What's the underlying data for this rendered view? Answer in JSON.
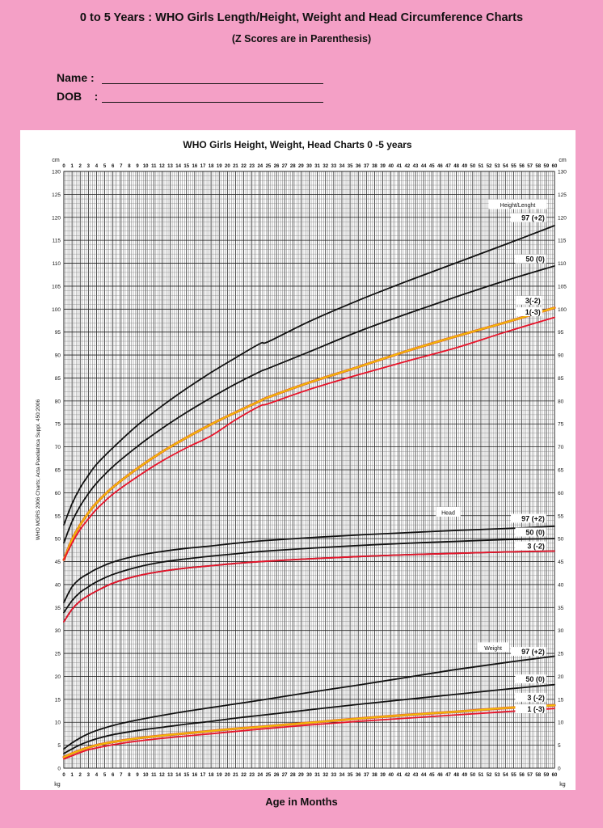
{
  "header": {
    "title": "0 to 5 Years : WHO Girls Length/Height, Weight and Head Circumference Charts",
    "subtitle": "(Z Scores are in Parenthesis)",
    "name_label": "Name :",
    "dob_label": "DOB    :"
  },
  "colors": {
    "background": "#f4a0c6",
    "panel": "#ffffff",
    "grid": "#333333",
    "curve_black": "#111111",
    "curve_yellow": "#f2c200",
    "curve_red": "#e8142a"
  },
  "chart_data": {
    "type": "line",
    "title": "WHO Girls Height, Weight, Head Charts 0 -5 years",
    "xlabel": "Age in Months",
    "ylabel_left_unit_top": "cm",
    "ylabel_right_unit_top": "cm",
    "ylabel_left_unit_bottom": "kg",
    "ylabel_right_unit_bottom": "kg",
    "source_note": "WHO MGRS 2006 Charts; Acta Paediatrica Suppl. 450:2006",
    "xlim": [
      0,
      60
    ],
    "ylim": [
      0,
      130
    ],
    "grid": true,
    "x_tick_labels": [
      "0",
      "1",
      "2",
      "3",
      "4",
      "5",
      "6",
      "7",
      "8",
      "9",
      "10",
      "11",
      "12",
      "13",
      "14",
      "15",
      "16",
      "17",
      "18",
      "19",
      "20",
      "21",
      "22",
      "23",
      "24",
      "25",
      "26",
      "27",
      "28",
      "29",
      "30",
      "31",
      "32",
      "33",
      "34",
      "35",
      "36",
      "37",
      "38",
      "39",
      "40",
      "41",
      "42",
      "43",
      "44",
      "45",
      "46",
      "47",
      "48",
      "49",
      "50",
      "51",
      "52",
      "53",
      "54",
      "55",
      "56",
      "57",
      "58",
      "59",
      "60"
    ],
    "y_tick_labels": [
      "0",
      "5",
      "10",
      "15",
      "20",
      "25",
      "30",
      "35",
      "40",
      "45",
      "50",
      "55",
      "60",
      "65",
      "70",
      "75",
      "80",
      "85",
      "90",
      "95",
      "100",
      "105",
      "110",
      "115",
      "120",
      "125",
      "130"
    ],
    "groups": [
      {
        "name": "Height/Lenght",
        "label_x": 55.5,
        "label_y": 122.5,
        "series": [
          {
            "name": "97 (+2)",
            "color": "black",
            "label_x": 59,
            "label_y": 119.5,
            "x": [
              0,
              1,
              2,
              3,
              4,
              6,
              9,
              12,
              15,
              18,
              21,
              24,
              25,
              30,
              36,
              42,
              48,
              54,
              60
            ],
            "y": [
              53.0,
              57.6,
              61.1,
              63.8,
              66.2,
              69.8,
              74.7,
              78.9,
              82.7,
              86.2,
              89.4,
              92.5,
              92.9,
              97.3,
              101.9,
              106.1,
              110.1,
              114.1,
              118.2
            ]
          },
          {
            "name": "50 (0)",
            "color": "black",
            "label_x": 59,
            "label_y": 110.5,
            "x": [
              0,
              1,
              2,
              3,
              4,
              6,
              9,
              12,
              15,
              18,
              21,
              24,
              25,
              30,
              36,
              42,
              48,
              54,
              60
            ],
            "y": [
              49.1,
              53.7,
              57.1,
              59.8,
              62.1,
              65.7,
              70.1,
              74.0,
              77.5,
              80.7,
              83.7,
              86.4,
              87.1,
              90.7,
              95.1,
              99.0,
              102.7,
              106.2,
              109.4
            ]
          },
          {
            "name": "3(-2)",
            "color": "yellow",
            "label_x": 58.5,
            "label_y": 101.5,
            "x": [
              0,
              1,
              2,
              3,
              4,
              6,
              9,
              12,
              15,
              18,
              21,
              24,
              25,
              30,
              36,
              42,
              48,
              54,
              60
            ],
            "y": [
              45.4,
              49.8,
              53.0,
              55.6,
              57.8,
              61.2,
              65.3,
              68.9,
              72.0,
              74.9,
              77.5,
              80.0,
              80.8,
              84.0,
              87.4,
              90.9,
              94.1,
              97.1,
              100.3
            ]
          },
          {
            "name": "1(-3)",
            "color": "red",
            "label_x": 58.5,
            "label_y": 99.0,
            "x": [
              0,
              1,
              2,
              3,
              4,
              6,
              9,
              12,
              15,
              18,
              21,
              24,
              25,
              30,
              36,
              42,
              48,
              54,
              60
            ],
            "y": [
              45.4,
              49.0,
              52.0,
              54.3,
              56.4,
              59.7,
              63.5,
              66.9,
              69.8,
              72.4,
              75.9,
              78.9,
              79.4,
              82.5,
              85.7,
              88.7,
              91.6,
              95.0,
              98.2
            ]
          }
        ]
      },
      {
        "name": "Head",
        "label_x": 47,
        "label_y": 55.5,
        "series": [
          {
            "name": "97 (+2)",
            "color": "black",
            "label_x": 59,
            "label_y": 54.0,
            "x": [
              0,
              1,
              2,
              3,
              4,
              6,
              9,
              12,
              15,
              18,
              21,
              24,
              30,
              36,
              42,
              48,
              54,
              60
            ],
            "y": [
              36.1,
              39.5,
              41.3,
              42.4,
              43.4,
              44.9,
              46.3,
              47.2,
              47.9,
              48.4,
              49.0,
              49.5,
              50.2,
              50.8,
              51.3,
              51.8,
              52.2,
              52.7
            ]
          },
          {
            "name": "50 (0)",
            "color": "black",
            "label_x": 59,
            "label_y": 51.0,
            "x": [
              0,
              1,
              2,
              3,
              4,
              6,
              9,
              12,
              15,
              18,
              21,
              24,
              30,
              36,
              42,
              48,
              54,
              60
            ],
            "y": [
              33.9,
              36.5,
              38.3,
              39.5,
              40.6,
              42.2,
              43.8,
              44.9,
              45.6,
              46.2,
              46.7,
              47.2,
              47.9,
              48.5,
              49.0,
              49.4,
              49.8,
              50.0
            ]
          },
          {
            "name": "3 (-2)",
            "color": "black",
            "label_x": 59,
            "label_y": 48.0,
            "x": [
              0,
              1,
              2,
              3,
              4,
              6,
              9,
              12,
              15,
              18,
              21,
              24,
              30,
              36,
              42,
              48,
              54,
              60
            ],
            "y": [
              31.9,
              34.6,
              36.4,
              37.6,
              38.6,
              40.3,
              41.9,
              42.9,
              43.6,
              44.1,
              44.6,
              45.0,
              45.6,
              46.1,
              46.5,
              46.8,
              47.1,
              47.3
            ]
          },
          {
            "name": "",
            "color": "red",
            "x": [
              0,
              1,
              2,
              3,
              4,
              6,
              9,
              12,
              15,
              18,
              21,
              24,
              30,
              36,
              42,
              48,
              54,
              60
            ],
            "y": [
              31.9,
              34.6,
              36.4,
              37.6,
              38.6,
              40.3,
              41.9,
              42.9,
              43.6,
              44.1,
              44.6,
              45.0,
              45.6,
              46.1,
              46.5,
              46.8,
              47.1,
              47.3
            ]
          }
        ]
      },
      {
        "name": "Weight",
        "label_x": 52.5,
        "label_y": 26.0,
        "series": [
          {
            "name": "97 (+2)",
            "color": "black",
            "label_x": 59,
            "label_y": 25.0,
            "x": [
              0,
              1,
              2,
              3,
              4,
              6,
              9,
              12,
              15,
              18,
              21,
              24,
              30,
              36,
              42,
              48,
              54,
              60
            ],
            "y": [
              4.2,
              5.5,
              6.6,
              7.5,
              8.2,
              9.3,
              10.5,
              11.5,
              12.4,
              13.2,
              14.0,
              14.8,
              16.5,
              18.1,
              19.8,
              21.5,
              23.0,
              24.4
            ]
          },
          {
            "name": "50 (0)",
            "color": "black",
            "label_x": 59,
            "label_y": 19.0,
            "x": [
              0,
              1,
              2,
              3,
              4,
              6,
              9,
              12,
              15,
              18,
              21,
              24,
              30,
              36,
              42,
              48,
              54,
              60
            ],
            "y": [
              3.2,
              4.2,
              5.1,
              5.8,
              6.4,
              7.3,
              8.2,
              8.9,
              9.6,
              10.2,
              10.9,
              11.5,
              12.7,
              13.9,
              15.0,
              16.1,
              17.2,
              18.2
            ]
          },
          {
            "name": "3 (-2)",
            "color": "yellow",
            "label_x": 59,
            "label_y": 15.0,
            "x": [
              0,
              1,
              2,
              3,
              4,
              6,
              9,
              12,
              15,
              18,
              21,
              24,
              30,
              36,
              42,
              48,
              54,
              60
            ],
            "y": [
              2.4,
              3.2,
              3.9,
              4.5,
              5.0,
              5.7,
              6.5,
              7.1,
              7.6,
              8.1,
              8.6,
              9.0,
              9.9,
              10.8,
              11.6,
              12.3,
              13.1,
              13.7
            ]
          },
          {
            "name": "1 (-3)",
            "color": "red",
            "label_x": 59,
            "label_y": 12.5,
            "x": [
              0,
              1,
              2,
              3,
              4,
              6,
              9,
              12,
              15,
              18,
              21,
              24,
              30,
              36,
              42,
              48,
              54,
              60
            ],
            "y": [
              2.0,
              2.7,
              3.4,
              4.0,
              4.4,
              5.1,
              5.9,
              6.5,
              7.0,
              7.5,
              8.0,
              8.5,
              9.4,
              10.2,
              10.9,
              11.6,
              12.3,
              13.0
            ]
          }
        ]
      }
    ]
  }
}
